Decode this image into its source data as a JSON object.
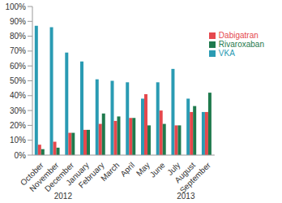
{
  "chart_data": {
    "type": "bar",
    "categories": [
      "October",
      "November",
      "December",
      "January",
      "February",
      "March",
      "April",
      "May",
      "June",
      "July",
      "August",
      "September"
    ],
    "series": [
      {
        "name": "VKA",
        "color": "#2a9bb3",
        "values": [
          87,
          86,
          69,
          63,
          51,
          50,
          49,
          38,
          49,
          58,
          38,
          29
        ]
      },
      {
        "name": "Dabigatran",
        "color": "#e5484d",
        "values": [
          7,
          9,
          15,
          17,
          21,
          23,
          25,
          41,
          30,
          20,
          29,
          29
        ]
      },
      {
        "name": "Rivaroxaban",
        "color": "#1f7a4d",
        "values": [
          4,
          5,
          15,
          17,
          28,
          26,
          25,
          20,
          21,
          20,
          33,
          42
        ]
      }
    ],
    "ylim": [
      0,
      100
    ],
    "yticks": [
      {
        "value": 0,
        "label": "0%"
      },
      {
        "value": 10,
        "label": "10%"
      },
      {
        "value": 20,
        "label": "20%"
      },
      {
        "value": 30,
        "label": "30%"
      },
      {
        "value": 40,
        "label": "40%"
      },
      {
        "value": 50,
        "label": "50%"
      },
      {
        "value": 60,
        "label": "60%"
      },
      {
        "value": 70,
        "label": "70%"
      },
      {
        "value": 80,
        "label": "80%"
      },
      {
        "value": 90,
        "label": "90%"
      },
      {
        "value": 100,
        "label": "100%"
      }
    ],
    "grid": false,
    "legend": "upper right",
    "annotations": [
      "2012",
      "2013"
    ]
  }
}
